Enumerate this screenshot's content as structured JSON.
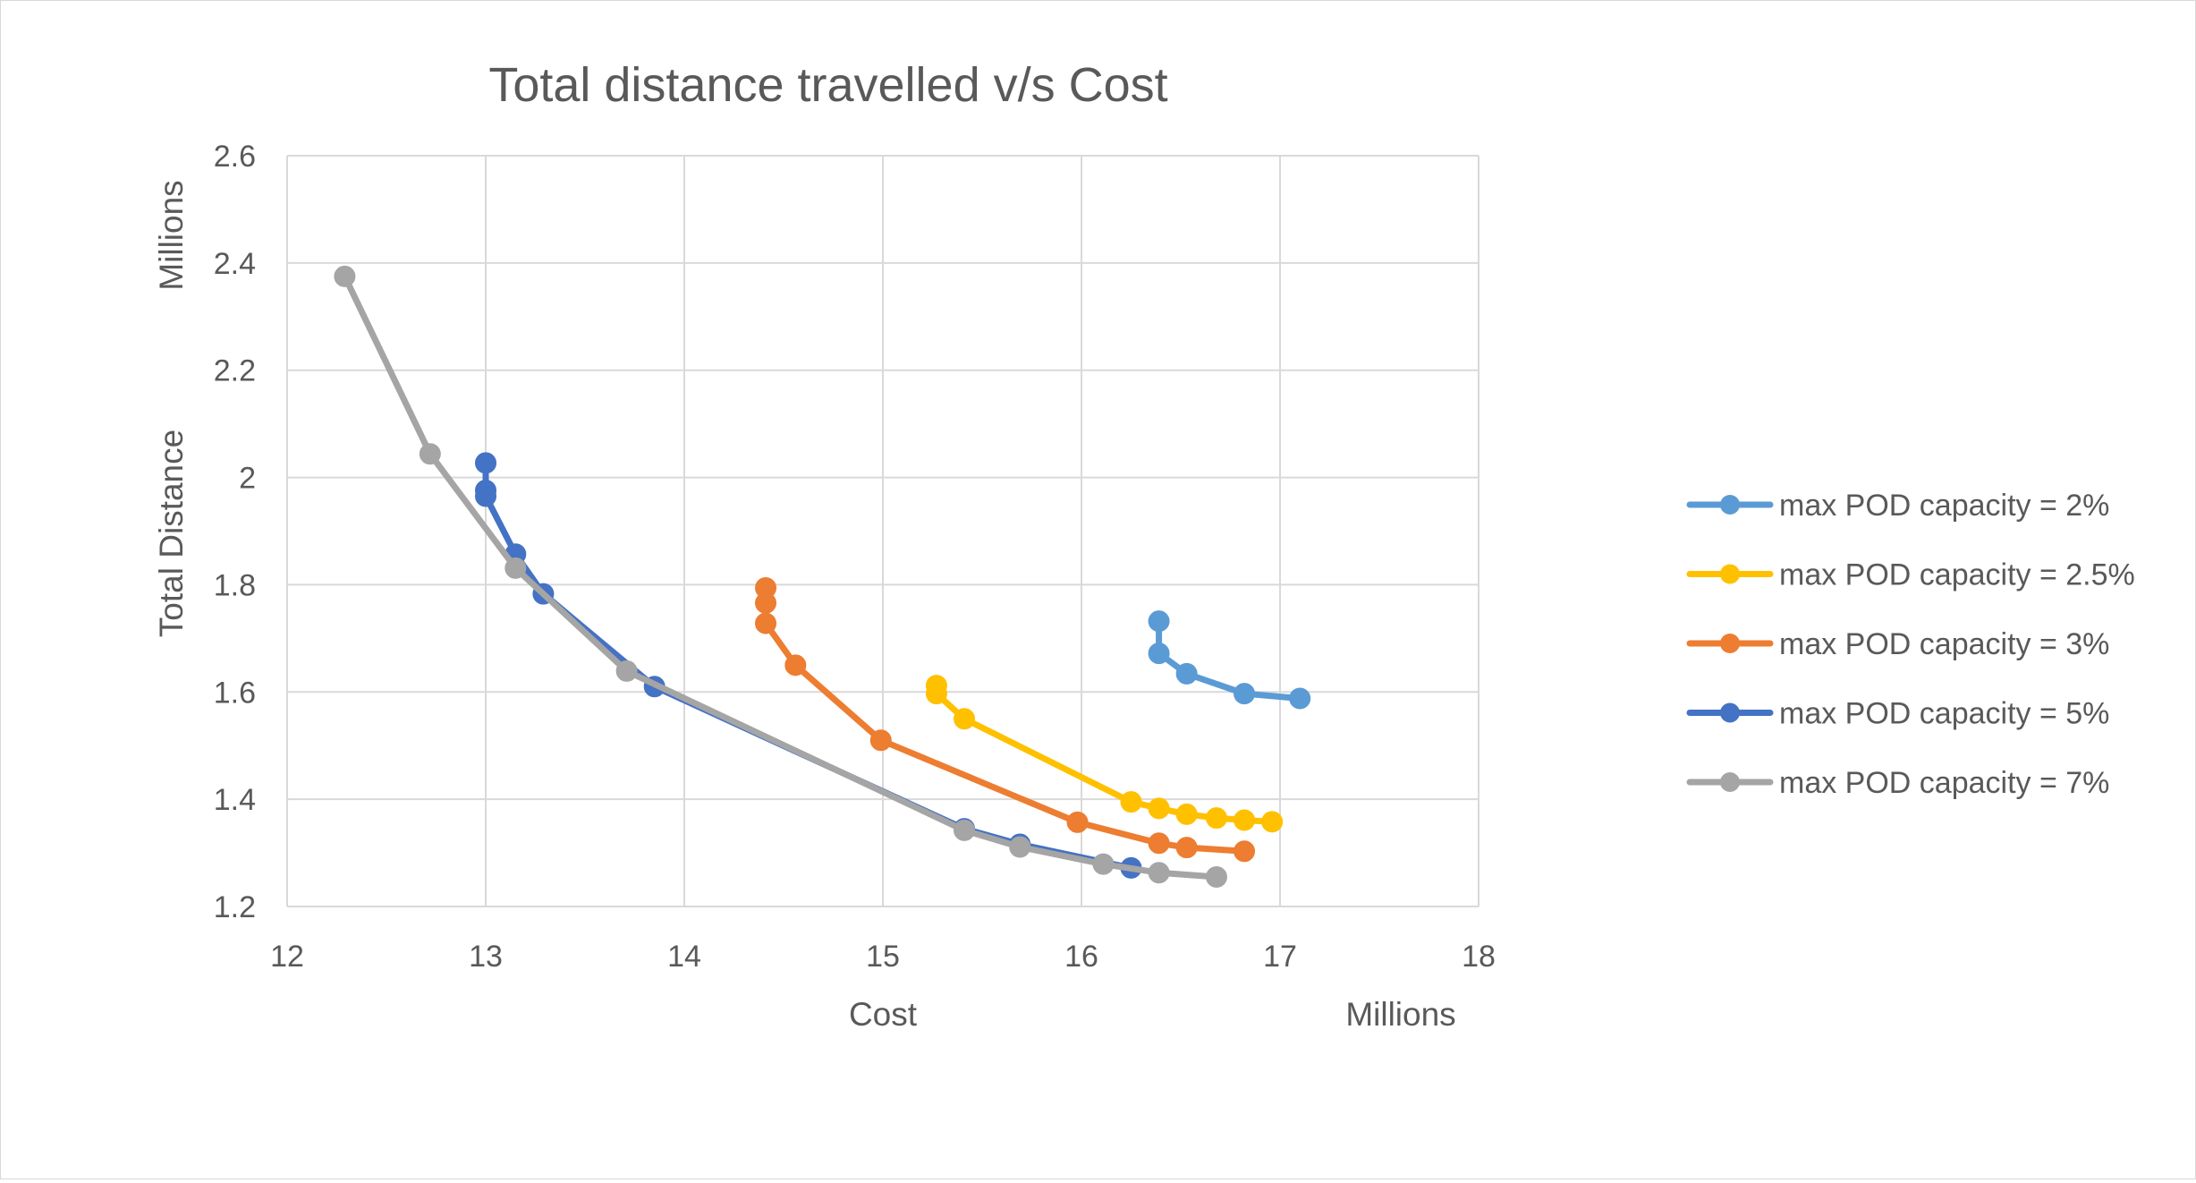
{
  "chart_data": {
    "type": "scatter",
    "title": "Total distance travelled v/s Cost",
    "xlabel": "Cost",
    "ylabel": "Total Distance",
    "x_unit_label": "Millions",
    "y_unit_label": "Millions",
    "xlim": [
      12,
      18
    ],
    "ylim": [
      1.2,
      2.6
    ],
    "x_ticks": [
      "12",
      "13",
      "14",
      "15",
      "16",
      "17",
      "18"
    ],
    "y_ticks": [
      "1.2",
      "1.4",
      "1.6",
      "1.8",
      "2",
      "2.2",
      "2.4",
      "2.6"
    ],
    "grid": true,
    "legend_position": "right",
    "series": [
      {
        "name": "max POD capacity = 2%",
        "color": "#5B9BD5",
        "x": [
          16.39,
          16.39,
          16.53,
          16.82,
          17.1
        ],
        "y": [
          1.732,
          1.672,
          1.634,
          1.597,
          1.588
        ]
      },
      {
        "name": "max POD capacity = 2.5%",
        "color": "#FFC000",
        "x": [
          15.27,
          15.27,
          15.41,
          16.25,
          16.39,
          16.53,
          16.68,
          16.82,
          16.96
        ],
        "y": [
          1.612,
          1.597,
          1.55,
          1.395,
          1.383,
          1.372,
          1.365,
          1.361,
          1.358
        ]
      },
      {
        "name": "max POD capacity = 3%",
        "color": "#ED7D31",
        "x": [
          14.41,
          14.41,
          14.41,
          14.56,
          14.99,
          15.98,
          16.39,
          16.53,
          16.82
        ],
        "y": [
          1.794,
          1.766,
          1.728,
          1.65,
          1.51,
          1.357,
          1.318,
          1.31,
          1.303
        ]
      },
      {
        "name": "max POD capacity = 5%",
        "color": "#4472C4",
        "x": [
          13.0,
          13.0,
          13.0,
          13.15,
          13.29,
          13.85,
          15.41,
          15.69,
          16.25
        ],
        "y": [
          2.027,
          1.976,
          1.965,
          1.857,
          1.783,
          1.61,
          1.345,
          1.316,
          1.272
        ]
      },
      {
        "name": "max POD capacity = 7%",
        "color": "#A5A5A5",
        "x": [
          12.29,
          12.72,
          13.15,
          13.71,
          15.41,
          15.69,
          16.11,
          16.39,
          16.68
        ],
        "y": [
          2.375,
          2.044,
          1.831,
          1.639,
          1.342,
          1.311,
          1.279,
          1.263,
          1.255
        ]
      }
    ]
  }
}
